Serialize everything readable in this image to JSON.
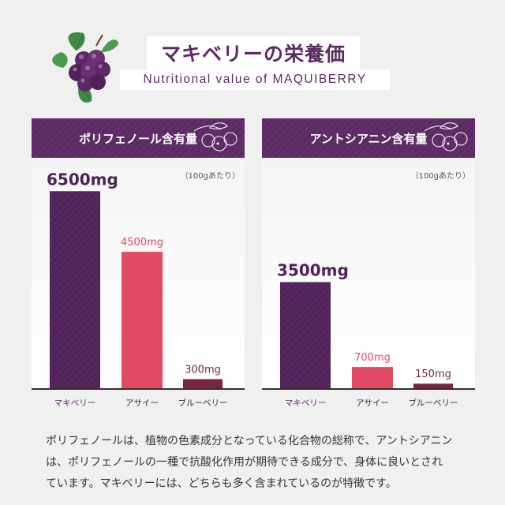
{
  "header": {
    "title_jp": "マキベリーの栄養価",
    "title_en": "Nutritional value of MAQUIBERRY",
    "logo_icon": "maquiberry-leaf-icon"
  },
  "colors": {
    "brand_purple": "#5b2a62",
    "maqui_bar": "#4f2357",
    "acai_bar": "#e04b63",
    "blueberry_bar": "#7a2343",
    "acai_label": "#e04b63",
    "maqui_label": "#4f2357",
    "blueberry_label": "#6a2d40",
    "category_label": "#5b2a62"
  },
  "chart_data": [
    {
      "type": "bar",
      "title": "ポリフェノール含有量",
      "unit_note": "（100gあたり）",
      "categories": [
        "マキベリー",
        "アサイー",
        "ブルーベリー"
      ],
      "values": [
        6500,
        4500,
        300
      ],
      "value_labels": [
        "6500mg",
        "4500mg",
        "300mg"
      ],
      "ylim": [
        0,
        7600
      ]
    },
    {
      "type": "bar",
      "title": "アントシアニン含有量",
      "unit_note": "（100gあたり）",
      "categories": [
        "マキベリー",
        "アサイー",
        "ブルーベリー"
      ],
      "values": [
        3500,
        700,
        150
      ],
      "value_labels": [
        "3500mg",
        "700mg",
        "150mg"
      ],
      "ylim": [
        0,
        7600
      ]
    }
  ],
  "description": {
    "lines": [
      "ポリフェノールは、植物の色素成分となっている化合物の総称で、アントシアニン",
      "は、ポリフェノールの一種で抗酸化作用が期待できる成分で、身体に良いとされ",
      "ています。マキベリーには、どちらも多く含まれているのが特徴です。"
    ]
  }
}
